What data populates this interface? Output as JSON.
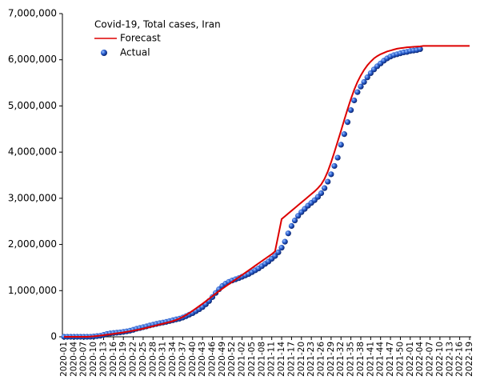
{
  "chart_data": {
    "type": "line",
    "title": "Covid-19, Total cases, Iran",
    "legend": "top-left",
    "categories": [
      "2020-01",
      null,
      null,
      "2020-04",
      null,
      null,
      "2020-07",
      null,
      null,
      "2020-10",
      null,
      null,
      "2020-13",
      null,
      null,
      "2020-16",
      null,
      null,
      "2020-19",
      null,
      null,
      "2020-22",
      null,
      null,
      "2020-25",
      null,
      null,
      "2020-28",
      null,
      null,
      "2020-31",
      null,
      null,
      "2020-34",
      null,
      null,
      "2020-37",
      null,
      null,
      "2020-40",
      null,
      null,
      "2020-43",
      null,
      null,
      "2020-46",
      null,
      null,
      "2020-49",
      null,
      null,
      "2020-52",
      null,
      null,
      "2021-02",
      null,
      null,
      "2021-05",
      null,
      null,
      "2021-08",
      null,
      null,
      "2021-11",
      null,
      null,
      "2021-14",
      null,
      null,
      "2021-17",
      null,
      null,
      "2021-20",
      null,
      null,
      "2021-23",
      null,
      null,
      "2021-26",
      null,
      null,
      "2021-29",
      null,
      null,
      "2021-32",
      null,
      null,
      "2021-35",
      null,
      null,
      "2021-38",
      null,
      null,
      "2021-41",
      null,
      null,
      "2021-44",
      null,
      null,
      "2021-47",
      null,
      null,
      "2021-50",
      null,
      null,
      "2022-01",
      null,
      null,
      "2022-04",
      null,
      null,
      "2022-07",
      null,
      null,
      "2022-10",
      null,
      null,
      "2022-13",
      null,
      null,
      "2022-16",
      null,
      null,
      "2022-19"
    ],
    "series": [
      {
        "name": "Forecast",
        "color": "#dd0000",
        "style": "line",
        "values": [
          0,
          0,
          0,
          0,
          0,
          0,
          0,
          0,
          5000,
          10000,
          18000,
          26000,
          35000,
          45000,
          55000,
          65000,
          75000,
          85000,
          96000,
          108000,
          120000,
          133000,
          147000,
          162000,
          178000,
          195000,
          212000,
          230000,
          248000,
          266000,
          284000,
          302000,
          320000,
          340000,
          365000,
          395000,
          430000,
          470000,
          515000,
          565000,
          615000,
          665000,
          715000,
          770000,
          825000,
          880000,
          935000,
          990000,
          1040000,
          1090000,
          1140000,
          1190000,
          1240000,
          1290000,
          1340000,
          1390000,
          1440000,
          1490000,
          1540000,
          1590000,
          1640000,
          1690000,
          1740000,
          1790000,
          1850000,
          2200000,
          2550000,
          2610000,
          2670000,
          2730000,
          2790000,
          2850000,
          2910000,
          2970000,
          3030000,
          3090000,
          3150000,
          3220000,
          3300000,
          3420000,
          3580000,
          3780000,
          4000000,
          4230000,
          4460000,
          4700000,
          4930000,
          5150000,
          5350000,
          5520000,
          5660000,
          5780000,
          5880000,
          5960000,
          6030000,
          6080000,
          6120000,
          6150000,
          6180000,
          6200000,
          6220000,
          6240000,
          6250000,
          6260000,
          6270000,
          6275000,
          6280000,
          6285000,
          6290000,
          6300000,
          6300000,
          6300000,
          6300000,
          6300000,
          6300000,
          6300000,
          6300000,
          6300000,
          6300000,
          6300000,
          6300000,
          6300000,
          6300000,
          6300000
        ]
      },
      {
        "name": "Actual",
        "color": "#1f55c8",
        "style": "points",
        "values": [
          0,
          0,
          0,
          0,
          0,
          0,
          0,
          0,
          1000,
          7000,
          15000,
          23000,
          41000,
          62000,
          73000,
          82000,
          89000,
          96000,
          106000,
          118000,
          132000,
          151000,
          174000,
          190000,
          208000,
          225000,
          246000,
          262000,
          279000,
          296000,
          309000,
          323000,
          341000,
          359000,
          377000,
          392000,
          416000,
          446000,
          480000,
          513000,
          555000,
          597000,
          645000,
          705000,
          775000,
          860000,
          950000,
          1030000,
          1100000,
          1150000,
          1190000,
          1220000,
          1245000,
          1270000,
          1300000,
          1330000,
          1360000,
          1400000,
          1440000,
          1480000,
          1530000,
          1580000,
          1630000,
          1690000,
          1750000,
          1830000,
          1930000,
          2060000,
          2240000,
          2400000,
          2520000,
          2620000,
          2700000,
          2770000,
          2840000,
          2900000,
          2960000,
          3030000,
          3110000,
          3220000,
          3360000,
          3520000,
          3700000,
          3880000,
          4160000,
          4390000,
          4650000,
          4910000,
          5120000,
          5300000,
          5420000,
          5520000,
          5620000,
          5710000,
          5790000,
          5860000,
          5920000,
          5980000,
          6030000,
          6070000,
          6100000,
          6120000,
          6140000,
          6160000,
          6170000,
          6190000,
          6200000,
          6210000,
          6230000,
          null,
          null,
          null,
          null,
          null,
          null,
          null,
          null,
          null,
          null,
          null,
          null,
          null,
          null,
          null
        ]
      }
    ],
    "ylim": [
      0,
      7000000
    ],
    "yticks": [
      0,
      {
        "value": 1000000,
        "label": "1,000,000"
      },
      {
        "value": 2000000,
        "label": "2,000,000"
      },
      {
        "value": 3000000,
        "label": "3,000,000"
      },
      {
        "value": 4000000,
        "label": "4,000,000"
      },
      {
        "value": 5000000,
        "label": "5,000,000"
      },
      {
        "value": 6000000,
        "label": "6,000,000"
      },
      {
        "value": 7000000,
        "label": "7,000,000"
      }
    ],
    "grid": false
  }
}
